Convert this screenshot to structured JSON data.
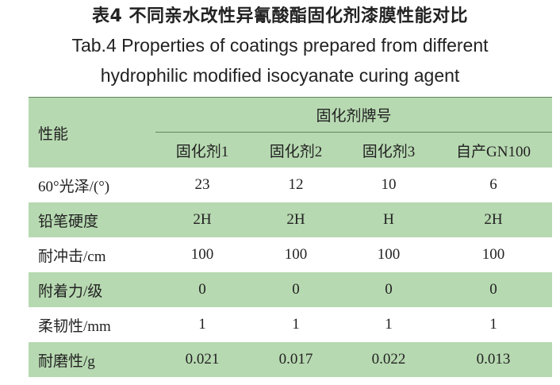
{
  "caption": {
    "zh": "表4 不同亲水改性异氰酸酯固化剂漆膜性能对比",
    "en_line1": "Tab.4 Properties of coatings prepared from different",
    "en_line2": "hydrophilic modified isocyanate curing agent"
  },
  "table": {
    "corner_header": "性能",
    "group_header": "固化剂牌号",
    "columns": [
      "固化剂1",
      "固化剂2",
      "固化剂3",
      "自产GN100"
    ],
    "rows": [
      {
        "label": "60°光泽/(°)",
        "values": [
          "23",
          "12",
          "10",
          "6"
        ]
      },
      {
        "label": "铅笔硬度",
        "values": [
          "2H",
          "2H",
          "H",
          "2H"
        ]
      },
      {
        "label": "耐冲击/cm",
        "values": [
          "100",
          "100",
          "100",
          "100"
        ]
      },
      {
        "label": "附着力/级",
        "values": [
          "0",
          "0",
          "0",
          "0"
        ]
      },
      {
        "label": "柔韧性/mm",
        "values": [
          "1",
          "1",
          "1",
          "1"
        ]
      },
      {
        "label": "耐磨性/g",
        "values": [
          "0.021",
          "0.017",
          "0.022",
          "0.013"
        ]
      }
    ]
  },
  "colors": {
    "shade": "#b7d9b1",
    "text": "#222222"
  }
}
